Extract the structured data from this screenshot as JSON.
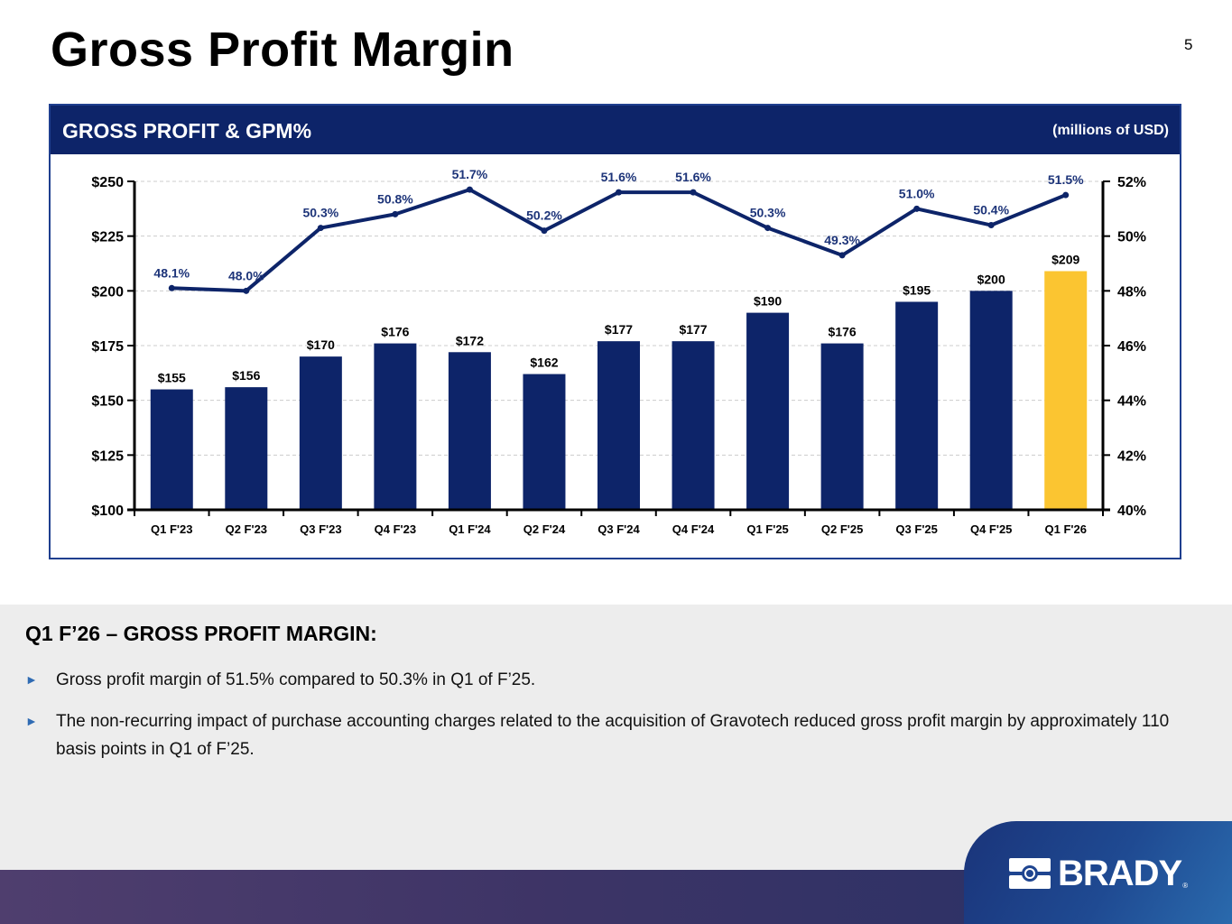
{
  "header": {
    "title": "Gross Profit Margin",
    "page_number": "5"
  },
  "panel": {
    "title": "GROSS PROFIT & GPM%",
    "units": "(millions of USD)"
  },
  "colors": {
    "navy": "#0d2469",
    "highlight": "#fbc531",
    "line": "#0d2469",
    "grid": "#cccccc"
  },
  "chart_data": {
    "type": "bar+line",
    "title": "GROSS PROFIT & GPM%",
    "units": "(millions of USD)",
    "categories": [
      "Q1 F'23",
      "Q2 F'23",
      "Q3 F'23",
      "Q4 F'23",
      "Q1 F'24",
      "Q2 F'24",
      "Q3 F'24",
      "Q4 F'24",
      "Q1 F'25",
      "Q2 F'25",
      "Q3 F'25",
      "Q4 F'25",
      "Q1 F'26"
    ],
    "series": [
      {
        "name": "Gross Profit",
        "type": "bar",
        "axis": "left",
        "values": [
          155,
          156,
          170,
          176,
          172,
          162,
          177,
          177,
          190,
          176,
          195,
          200,
          209
        ],
        "labels": [
          "$155",
          "$156",
          "$170",
          "$176",
          "$172",
          "$162",
          "$177",
          "$177",
          "$190",
          "$176",
          "$195",
          "$200",
          "$209"
        ],
        "highlight_index": 12
      },
      {
        "name": "GPM%",
        "type": "line",
        "axis": "right",
        "values": [
          48.1,
          48.0,
          50.3,
          50.8,
          51.7,
          50.2,
          51.6,
          51.6,
          50.3,
          49.3,
          51.0,
          50.4,
          51.5
        ],
        "labels": [
          "48.1%",
          "48.0%",
          "50.3%",
          "50.8%",
          "51.7%",
          "50.2%",
          "51.6%",
          "51.6%",
          "50.3%",
          "49.3%",
          "51.0%",
          "50.4%",
          "51.5%"
        ]
      }
    ],
    "left_axis": {
      "range": [
        100,
        250
      ],
      "ticks": [
        100,
        125,
        150,
        175,
        200,
        225,
        250
      ],
      "tick_labels": [
        "$100",
        "$125",
        "$150",
        "$175",
        "$200",
        "$225",
        "$250"
      ]
    },
    "right_axis": {
      "range": [
        40,
        52
      ],
      "ticks": [
        40,
        42,
        44,
        46,
        48,
        50,
        52
      ],
      "tick_labels": [
        "40%",
        "42%",
        "44%",
        "46%",
        "48%",
        "50%",
        "52%"
      ]
    },
    "grid": true,
    "legend": "none"
  },
  "summary": {
    "heading": "Q1 F’26 – GROSS PROFIT MARGIN:",
    "bullet_marker": "►",
    "bullets": [
      "Gross profit margin of 51.5% compared to 50.3% in Q1 of F’25.",
      "The non-recurring impact of purchase accounting charges related to the acquisition of Gravotech reduced gross profit margin by approximately 110 basis points in Q1 of F’25."
    ]
  },
  "footer": {
    "logo_text": "BRADY",
    "logo_mark": "®"
  }
}
